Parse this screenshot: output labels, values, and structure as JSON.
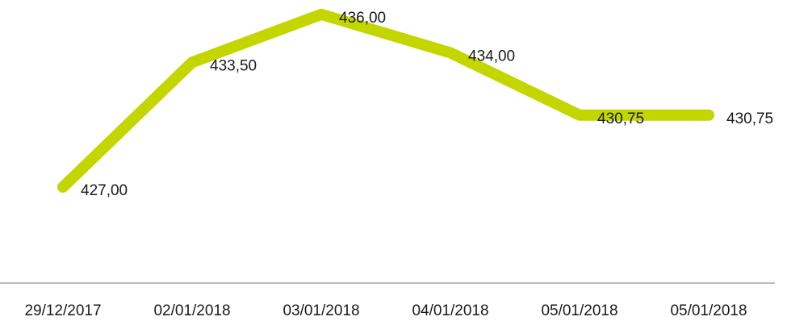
{
  "chart_data": {
    "type": "line",
    "categories": [
      "29/12/2017",
      "02/01/2018",
      "03/01/2018",
      "04/01/2018",
      "05/01/2018",
      "05/01/2018"
    ],
    "values": [
      427.0,
      433.5,
      436.0,
      434.0,
      430.75,
      430.75
    ],
    "value_labels": [
      "427,00",
      "433,50",
      "436,00",
      "434,00",
      "430,75",
      "430,75"
    ],
    "color": "#c3d600",
    "ylim": [
      422,
      437
    ]
  }
}
